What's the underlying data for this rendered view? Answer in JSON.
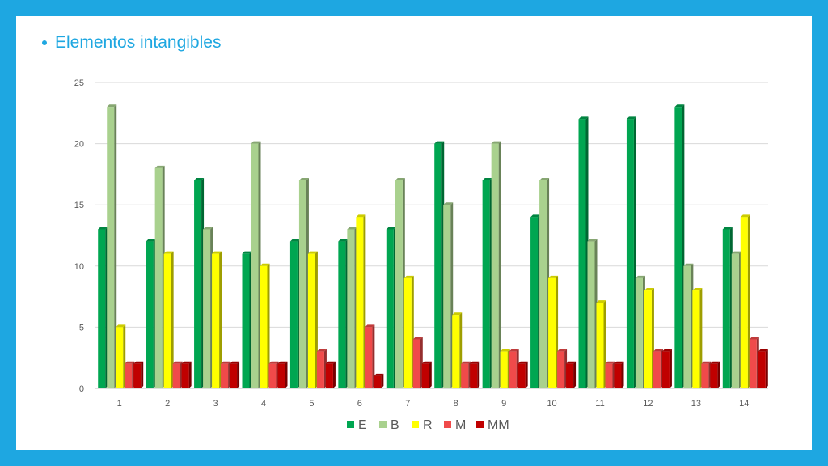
{
  "slide": {
    "title": "Elementos intangibles",
    "accent": "#1ea7e1"
  },
  "chart_data": {
    "type": "bar",
    "title": "",
    "xlabel": "",
    "ylabel": "",
    "categories": [
      "1",
      "2",
      "3",
      "4",
      "5",
      "6",
      "7",
      "8",
      "9",
      "10",
      "11",
      "12",
      "13",
      "14"
    ],
    "ylim": [
      0,
      25
    ],
    "yticks": [
      0,
      5,
      10,
      15,
      20,
      25
    ],
    "grid": true,
    "legend_position": "bottom",
    "series": [
      {
        "name": "E",
        "color": "#00a651",
        "values": [
          13,
          12,
          17,
          11,
          12,
          12,
          13,
          20,
          17,
          14,
          22,
          22,
          23,
          13
        ]
      },
      {
        "name": "B",
        "color": "#a9d18e",
        "values": [
          23,
          18,
          13,
          20,
          17,
          13,
          17,
          15,
          20,
          17,
          12,
          9,
          10,
          11
        ]
      },
      {
        "name": "R",
        "color": "#ffff00",
        "values": [
          5,
          11,
          11,
          10,
          11,
          14,
          9,
          6,
          3,
          9,
          7,
          8,
          8,
          14
        ]
      },
      {
        "name": "M",
        "color": "#f04a4a",
        "values": [
          2,
          2,
          2,
          2,
          3,
          5,
          4,
          2,
          3,
          3,
          2,
          3,
          2,
          4
        ]
      },
      {
        "name": "MM",
        "color": "#c00000",
        "values": [
          2,
          2,
          2,
          2,
          2,
          1,
          2,
          2,
          2,
          2,
          2,
          3,
          2,
          3
        ]
      }
    ]
  }
}
